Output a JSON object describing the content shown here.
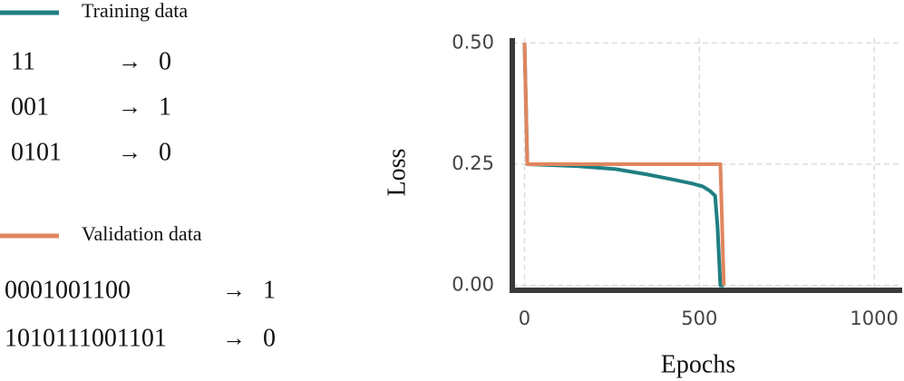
{
  "chart_data": {
    "type": "line",
    "xlabel": "Epochs",
    "ylabel": "Loss",
    "arrow": "→",
    "xlim": [
      -35,
      1080
    ],
    "ylim": [
      -0.01,
      0.51
    ],
    "xticks": [
      0,
      500,
      1000
    ],
    "yticks": [
      {
        "value": 0,
        "label": "0.00"
      },
      {
        "value": 0.25,
        "label": "0.25"
      },
      {
        "value": 0.5,
        "label": "0.50"
      }
    ],
    "grid": true,
    "series": [
      {
        "name": "Training data",
        "color": "#1f7f82",
        "x": [
          0,
          8,
          150,
          260,
          350,
          420,
          480,
          510,
          530,
          545,
          552,
          560,
          570
        ],
        "values": [
          0.5,
          0.25,
          0.246,
          0.24,
          0.229,
          0.219,
          0.21,
          0.204,
          0.195,
          0.185,
          0.12,
          0.0,
          0.0
        ],
        "examples": [
          {
            "input": "11",
            "output": "0"
          },
          {
            "input": "001",
            "output": "1"
          },
          {
            "input": "0101",
            "output": "0"
          }
        ]
      },
      {
        "name": "Validation data",
        "color": "#e0865f",
        "x": [
          0,
          8,
          560,
          570
        ],
        "values": [
          0.5,
          0.25,
          0.25,
          0.0
        ],
        "examples": [
          {
            "input": "0001001100",
            "output": "1"
          },
          {
            "input": "1010111001101",
            "output": "0"
          }
        ]
      }
    ]
  }
}
